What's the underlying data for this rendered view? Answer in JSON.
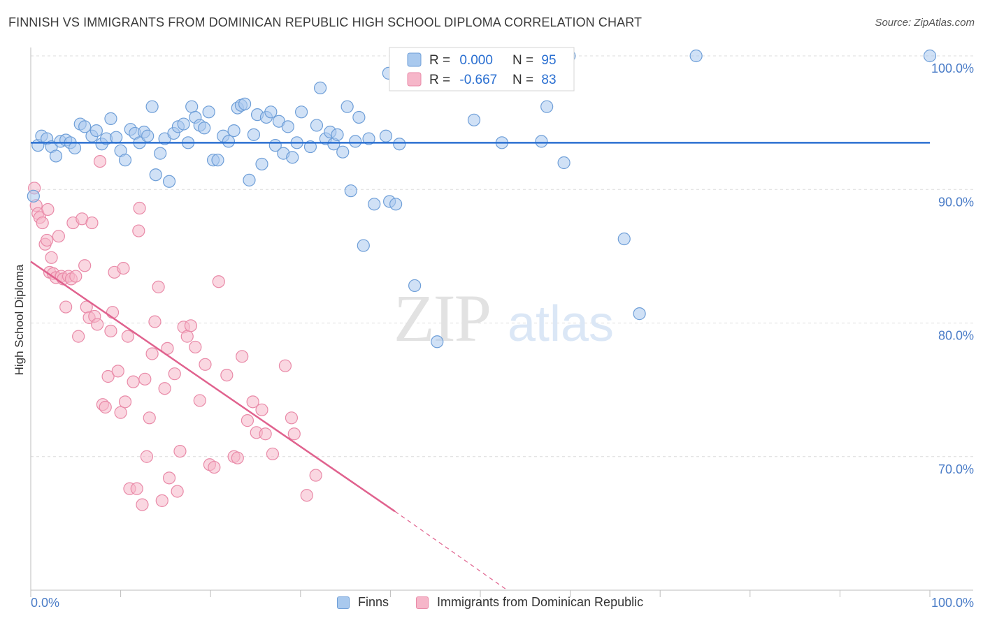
{
  "title": "FINNISH VS IMMIGRANTS FROM DOMINICAN REPUBLIC HIGH SCHOOL DIPLOMA CORRELATION CHART",
  "source": "Source: ZipAtlas.com",
  "watermark": {
    "zip": "ZIP",
    "atlas": "atlas"
  },
  "colors": {
    "finns_fill": "#a9c9ee",
    "finns_stroke": "#6f9fd8",
    "finns_line": "#2a6fd1",
    "dom_fill": "#f6b6c9",
    "dom_stroke": "#e98aa8",
    "dom_line": "#e0628e",
    "tick_label": "#4a7cc7",
    "grid": "#dcdcdc"
  },
  "legend": {
    "rows": [
      {
        "r_label": "R = ",
        "r_value": "0.000",
        "n_label": "N = ",
        "n_value": "95"
      },
      {
        "r_label": "R = ",
        "r_value": "-0.667",
        "n_label": "N = ",
        "n_value": "83"
      }
    ]
  },
  "bottom_legend": [
    {
      "label": "Finns"
    },
    {
      "label": "Immigrants from Dominican Republic"
    }
  ],
  "chart_data": {
    "type": "scatter",
    "title": "FINNISH VS IMMIGRANTS FROM DOMINICAN REPUBLIC HIGH SCHOOL DIPLOMA CORRELATION CHART",
    "xlabel": "",
    "ylabel": "High School Diploma",
    "xlim": [
      0,
      100
    ],
    "ylim": [
      60,
      100
    ],
    "x_tick_labels": [
      "0.0%",
      "100.0%"
    ],
    "y_ticks": [
      {
        "value": 100,
        "label": "100.0%"
      },
      {
        "value": 90,
        "label": "90.0%"
      },
      {
        "value": 80,
        "label": "80.0%"
      },
      {
        "value": 70,
        "label": "70.0%"
      }
    ],
    "grid": true,
    "legend_position": "top-center",
    "series": [
      {
        "name": "Finns",
        "r": 0.0,
        "n": 95,
        "trend": {
          "x": [
            0,
            100
          ],
          "y": [
            93.5,
            93.5
          ]
        },
        "points": [
          [
            0.3,
            89.5
          ],
          [
            0.8,
            93.3
          ],
          [
            1.2,
            94.0
          ],
          [
            1.8,
            93.8
          ],
          [
            2.3,
            93.2
          ],
          [
            2.8,
            92.5
          ],
          [
            3.3,
            93.6
          ],
          [
            3.9,
            93.7
          ],
          [
            4.4,
            93.5
          ],
          [
            4.9,
            93.1
          ],
          [
            5.5,
            94.9
          ],
          [
            6.0,
            94.7
          ],
          [
            6.8,
            94.0
          ],
          [
            7.3,
            94.4
          ],
          [
            7.9,
            93.4
          ],
          [
            8.4,
            93.8
          ],
          [
            8.9,
            95.3
          ],
          [
            9.5,
            93.9
          ],
          [
            10.0,
            92.9
          ],
          [
            10.5,
            92.2
          ],
          [
            11.1,
            94.5
          ],
          [
            11.6,
            94.2
          ],
          [
            12.1,
            93.5
          ],
          [
            12.6,
            94.3
          ],
          [
            13.0,
            94.0
          ],
          [
            13.5,
            96.2
          ],
          [
            13.9,
            91.1
          ],
          [
            14.4,
            92.7
          ],
          [
            14.9,
            93.8
          ],
          [
            15.4,
            90.6
          ],
          [
            15.9,
            94.2
          ],
          [
            16.4,
            94.7
          ],
          [
            17.0,
            94.9
          ],
          [
            17.5,
            93.5
          ],
          [
            17.9,
            96.2
          ],
          [
            18.3,
            95.4
          ],
          [
            18.8,
            94.8
          ],
          [
            19.3,
            94.6
          ],
          [
            19.8,
            95.8
          ],
          [
            20.3,
            92.2
          ],
          [
            20.8,
            92.2
          ],
          [
            21.4,
            94.0
          ],
          [
            22.0,
            93.6
          ],
          [
            22.6,
            94.4
          ],
          [
            23.0,
            96.1
          ],
          [
            23.4,
            96.3
          ],
          [
            23.8,
            96.4
          ],
          [
            24.3,
            90.7
          ],
          [
            24.8,
            94.1
          ],
          [
            25.2,
            95.6
          ],
          [
            25.7,
            91.9
          ],
          [
            26.2,
            95.4
          ],
          [
            26.7,
            95.8
          ],
          [
            27.2,
            93.3
          ],
          [
            27.6,
            95.1
          ],
          [
            28.1,
            92.7
          ],
          [
            28.6,
            94.7
          ],
          [
            29.1,
            92.4
          ],
          [
            29.6,
            93.5
          ],
          [
            30.1,
            95.8
          ],
          [
            31.1,
            93.2
          ],
          [
            31.8,
            94.8
          ],
          [
            32.2,
            97.6
          ],
          [
            32.8,
            93.8
          ],
          [
            33.3,
            94.3
          ],
          [
            33.7,
            93.4
          ],
          [
            34.1,
            94.1
          ],
          [
            34.7,
            92.8
          ],
          [
            35.2,
            96.2
          ],
          [
            35.6,
            89.9
          ],
          [
            36.1,
            93.6
          ],
          [
            36.5,
            95.4
          ],
          [
            37.0,
            85.8
          ],
          [
            37.6,
            93.8
          ],
          [
            38.2,
            88.9
          ],
          [
            39.5,
            94.0
          ],
          [
            39.9,
            89.1
          ],
          [
            40.6,
            88.9
          ],
          [
            41.0,
            93.4
          ],
          [
            42.7,
            82.8
          ],
          [
            45.2,
            78.6
          ],
          [
            46.2,
            98.7
          ],
          [
            49.3,
            95.2
          ],
          [
            52.4,
            93.5
          ],
          [
            55.6,
            100.0
          ],
          [
            56.8,
            93.6
          ],
          [
            57.4,
            96.2
          ],
          [
            59.3,
            92.0
          ],
          [
            66.0,
            86.3
          ],
          [
            67.7,
            80.7
          ],
          [
            74.0,
            100.0
          ],
          [
            100.0,
            100.0
          ],
          [
            41.3,
            98.6
          ],
          [
            39.8,
            98.7
          ],
          [
            59.9,
            100.0
          ]
        ]
      },
      {
        "name": "Immigrants from Dominican Republic",
        "r": -0.667,
        "n": 83,
        "trend": {
          "x": [
            0,
            40.5
          ],
          "y": [
            84.6,
            65.9
          ]
        },
        "trend_dashed": {
          "x": [
            40.5,
            53
          ],
          "y": [
            65.9,
            60
          ]
        },
        "points": [
          [
            0.4,
            90.1
          ],
          [
            0.6,
            88.8
          ],
          [
            0.8,
            88.2
          ],
          [
            1.0,
            87.9
          ],
          [
            1.3,
            87.5
          ],
          [
            1.6,
            85.9
          ],
          [
            1.8,
            86.2
          ],
          [
            2.1,
            83.8
          ],
          [
            2.3,
            84.9
          ],
          [
            2.5,
            83.7
          ],
          [
            2.8,
            83.4
          ],
          [
            3.1,
            86.5
          ],
          [
            3.4,
            83.5
          ],
          [
            3.6,
            83.3
          ],
          [
            3.9,
            81.2
          ],
          [
            4.2,
            83.5
          ],
          [
            4.5,
            83.3
          ],
          [
            4.7,
            87.5
          ],
          [
            5.0,
            83.5
          ],
          [
            5.3,
            79.0
          ],
          [
            5.7,
            87.8
          ],
          [
            6.0,
            84.3
          ],
          [
            6.2,
            81.2
          ],
          [
            6.5,
            80.4
          ],
          [
            6.8,
            87.5
          ],
          [
            7.1,
            80.5
          ],
          [
            7.4,
            79.9
          ],
          [
            7.7,
            92.1
          ],
          [
            8.0,
            73.9
          ],
          [
            8.3,
            73.7
          ],
          [
            8.6,
            76.0
          ],
          [
            8.9,
            79.4
          ],
          [
            9.1,
            80.8
          ],
          [
            9.3,
            83.8
          ],
          [
            9.7,
            76.4
          ],
          [
            10.0,
            73.3
          ],
          [
            10.3,
            84.1
          ],
          [
            10.5,
            74.1
          ],
          [
            10.8,
            79.0
          ],
          [
            11.0,
            67.6
          ],
          [
            11.4,
            75.6
          ],
          [
            11.8,
            67.6
          ],
          [
            12.0,
            86.9
          ],
          [
            12.1,
            88.6
          ],
          [
            12.4,
            66.4
          ],
          [
            12.7,
            75.8
          ],
          [
            12.9,
            70.0
          ],
          [
            13.2,
            72.9
          ],
          [
            13.5,
            77.7
          ],
          [
            13.8,
            80.1
          ],
          [
            14.2,
            82.7
          ],
          [
            14.6,
            66.7
          ],
          [
            14.9,
            75.1
          ],
          [
            15.2,
            78.1
          ],
          [
            15.4,
            68.4
          ],
          [
            16.0,
            76.2
          ],
          [
            16.3,
            67.4
          ],
          [
            16.6,
            70.4
          ],
          [
            17.0,
            79.7
          ],
          [
            17.4,
            79.0
          ],
          [
            17.8,
            79.8
          ],
          [
            18.3,
            78.2
          ],
          [
            18.8,
            74.2
          ],
          [
            19.4,
            76.9
          ],
          [
            19.9,
            69.4
          ],
          [
            20.4,
            69.2
          ],
          [
            20.9,
            83.1
          ],
          [
            21.8,
            76.1
          ],
          [
            22.6,
            70.0
          ],
          [
            23.0,
            69.9
          ],
          [
            23.5,
            77.5
          ],
          [
            24.1,
            72.7
          ],
          [
            24.7,
            74.1
          ],
          [
            25.1,
            71.8
          ],
          [
            25.7,
            73.5
          ],
          [
            26.1,
            71.7
          ],
          [
            26.9,
            70.2
          ],
          [
            28.3,
            76.8
          ],
          [
            29.0,
            72.9
          ],
          [
            29.3,
            71.7
          ],
          [
            30.7,
            67.1
          ],
          [
            31.7,
            68.6
          ],
          [
            1.9,
            88.5
          ]
        ]
      }
    ]
  }
}
